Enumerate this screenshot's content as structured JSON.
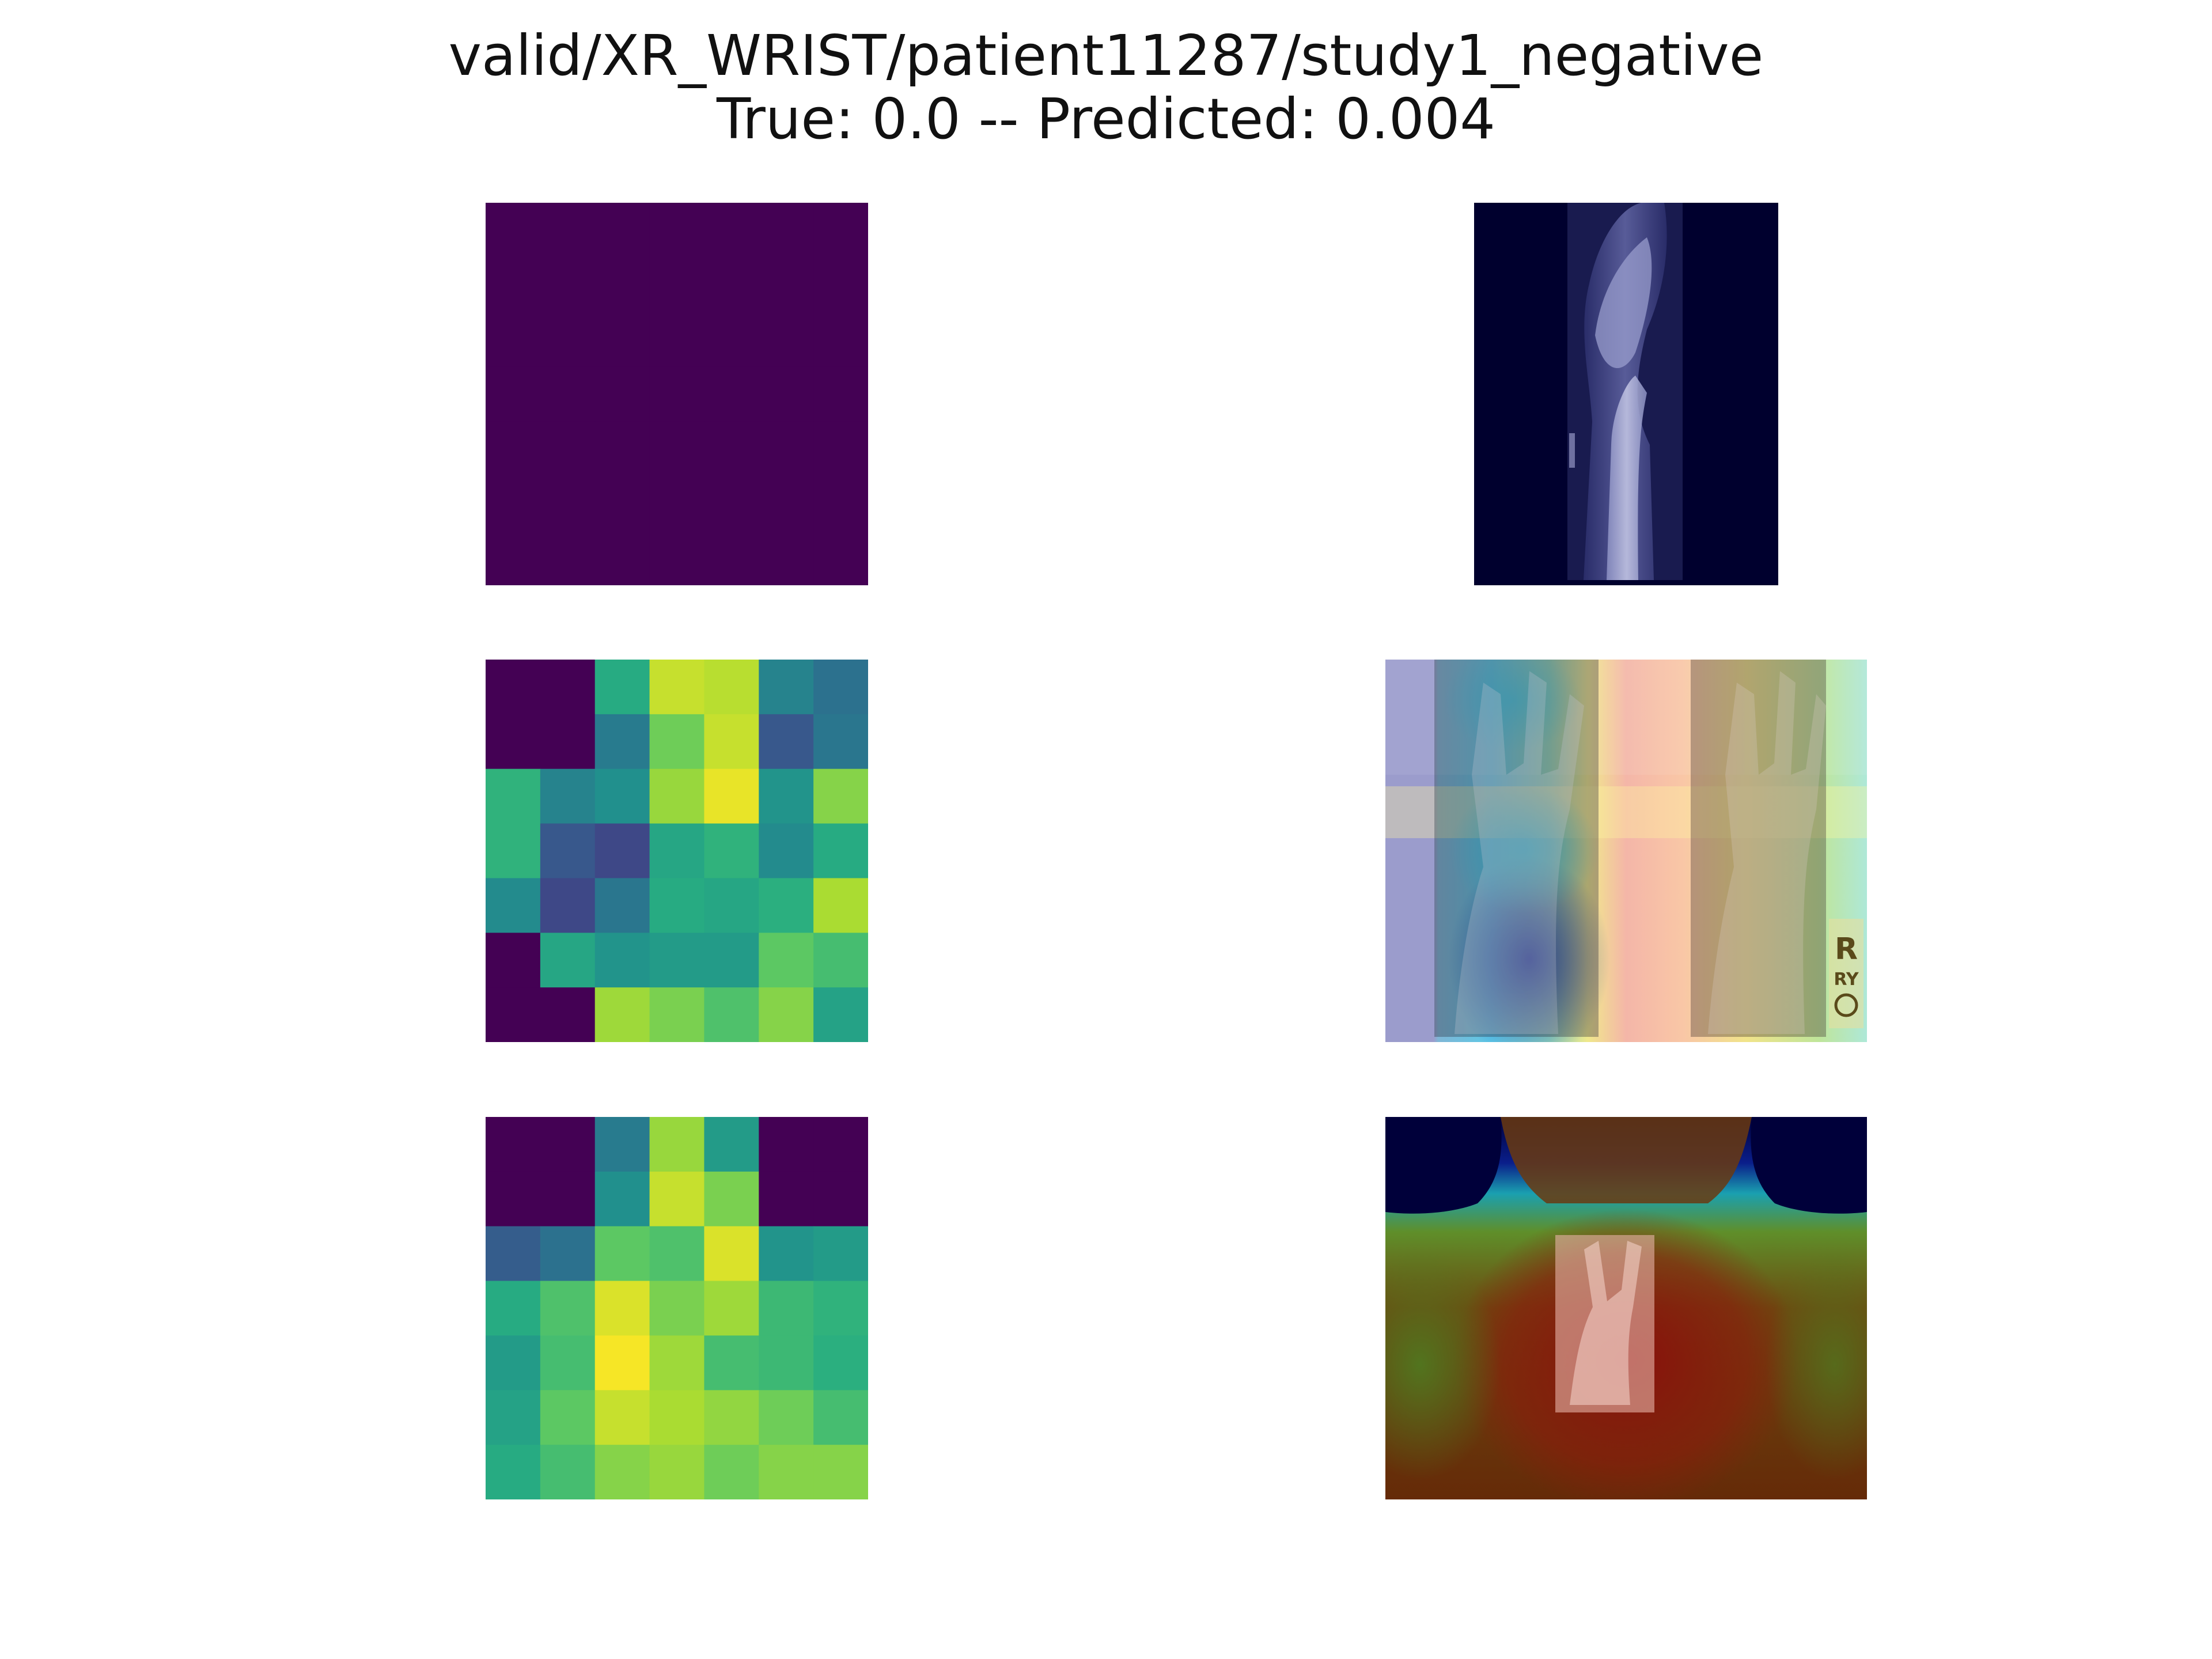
{
  "title": {
    "line1": "valid/XR_WRIST/patient11287/study1_negative",
    "line2": "True: 0.0 -- Predicted: 0.004"
  },
  "chart_data": [
    {
      "type": "heatmap",
      "colormap": "viridis",
      "rows": 7,
      "cols": 7,
      "values": [
        [
          0,
          0,
          0,
          0,
          0,
          0,
          0
        ],
        [
          0,
          0,
          0,
          0,
          0,
          0,
          0
        ],
        [
          0,
          0,
          0,
          0,
          0,
          0,
          0
        ],
        [
          0,
          0,
          0,
          0,
          0,
          0,
          0
        ],
        [
          0,
          0,
          0,
          0,
          0,
          0,
          0
        ],
        [
          0,
          0,
          0,
          0,
          0,
          0,
          0
        ],
        [
          0,
          0,
          0,
          0,
          0,
          0,
          0
        ]
      ]
    },
    {
      "type": "heatmap",
      "colormap": "viridis",
      "rows": 7,
      "cols": 7,
      "values": [
        [
          0.0,
          0.0,
          0.62,
          0.92,
          0.9,
          0.45,
          0.38
        ],
        [
          0.0,
          0.0,
          0.42,
          0.78,
          0.92,
          0.28,
          0.4
        ],
        [
          0.65,
          0.45,
          0.5,
          0.85,
          0.97,
          0.52,
          0.82
        ],
        [
          0.65,
          0.28,
          0.22,
          0.6,
          0.65,
          0.48,
          0.62
        ],
        [
          0.48,
          0.22,
          0.4,
          0.62,
          0.6,
          0.64,
          0.88
        ],
        [
          0.0,
          0.6,
          0.52,
          0.55,
          0.55,
          0.75,
          0.7
        ],
        [
          0.0,
          0.0,
          0.86,
          0.8,
          0.72,
          0.82,
          0.58
        ]
      ]
    },
    {
      "type": "heatmap",
      "colormap": "viridis",
      "rows": 7,
      "cols": 7,
      "values": [
        [
          0.0,
          0.0,
          0.42,
          0.85,
          0.55,
          0.0,
          0.0
        ],
        [
          0.0,
          0.0,
          0.5,
          0.92,
          0.8,
          0.0,
          0.0
        ],
        [
          0.3,
          0.38,
          0.75,
          0.72,
          0.95,
          0.52,
          0.55
        ],
        [
          0.62,
          0.72,
          0.95,
          0.8,
          0.86,
          0.68,
          0.65
        ],
        [
          0.55,
          0.7,
          0.99,
          0.86,
          0.7,
          0.68,
          0.64
        ],
        [
          0.58,
          0.75,
          0.92,
          0.88,
          0.84,
          0.78,
          0.7
        ],
        [
          0.62,
          0.7,
          0.82,
          0.85,
          0.78,
          0.82,
          0.82
        ]
      ]
    }
  ],
  "panels": {
    "xray_1": {
      "icon": "lateral-wrist-xray-image"
    },
    "overlay_2": {
      "icon": "pa-wrist-xray-jet-overlay",
      "marker_text_1": "R",
      "marker_text_2": "RY"
    },
    "overlay_3": {
      "icon": "wrist-xray-jet-overlay"
    }
  },
  "colors": {
    "background": "#ffffff",
    "xray_background": "#00002e"
  }
}
